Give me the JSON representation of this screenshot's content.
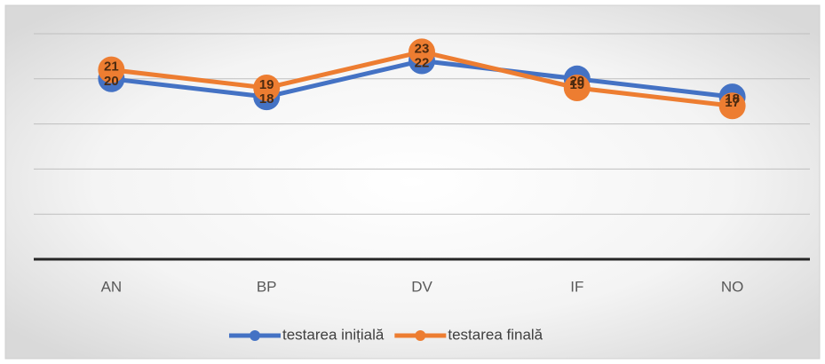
{
  "chart_data": {
    "type": "line",
    "categories": [
      "AN",
      "BP",
      "DV",
      "IF",
      "NO"
    ],
    "series": [
      {
        "name": "testarea inițială",
        "color": "#4472c4",
        "values": [
          20,
          18,
          22,
          20,
          18
        ]
      },
      {
        "name": "testarea finală",
        "color": "#ed7d31",
        "values": [
          21,
          19,
          23,
          19,
          17
        ]
      }
    ],
    "ylim": [
      0,
      25
    ],
    "yticks": [
      0,
      5,
      10,
      15,
      20,
      25
    ],
    "grid": true,
    "legend": "bottom"
  }
}
